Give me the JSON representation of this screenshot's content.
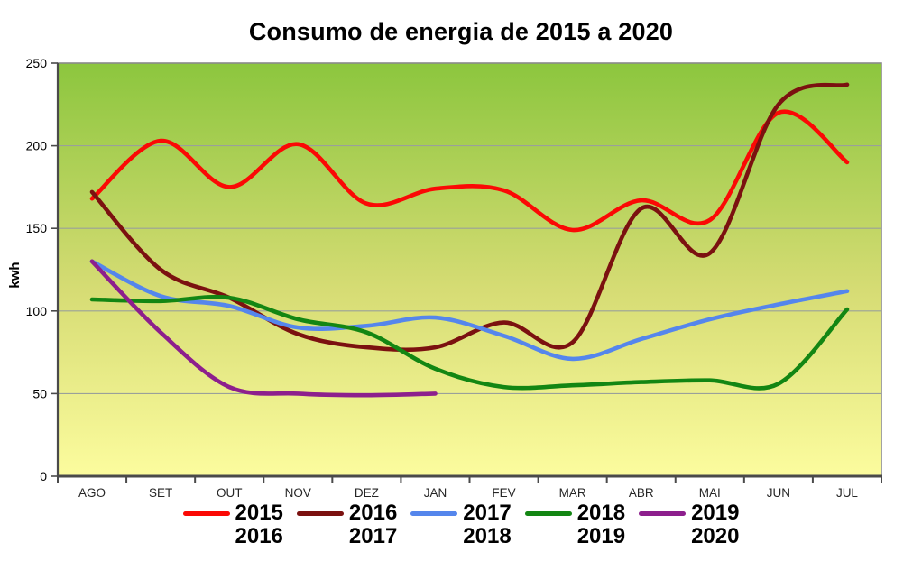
{
  "title": "Consumo de energia de 2015 a 2020",
  "y_axis": {
    "label": "kwh"
  },
  "chart_data": {
    "type": "line",
    "title": "Consumo de energia de 2015 a 2020",
    "xlabel": "",
    "ylabel": "kwh",
    "ylim": [
      0,
      250
    ],
    "yticks": [
      0,
      50,
      100,
      150,
      200,
      250
    ],
    "grid": true,
    "line_style": "smooth",
    "legend_position": "bottom",
    "plot_background": {
      "gradient_top": "#8CC63E",
      "gradient_mid": "#D6DC74",
      "gradient_bottom": "#FCFC9E",
      "border_color": "#8A8A8A",
      "axis_color": "#4A4A4A",
      "gridline_color": "#9AA09A"
    },
    "categories": [
      "AGO",
      "SET",
      "OUT",
      "NOV",
      "DEZ",
      "JAN",
      "FEV",
      "MAR",
      "ABR",
      "MAI",
      "JUN",
      "JUL"
    ],
    "series": [
      {
        "name": "2015 2016",
        "legend_lines": [
          "2015",
          "2016"
        ],
        "color": "#FB0905",
        "values": [
          168,
          203,
          175,
          201,
          165,
          174,
          173,
          149,
          167,
          155,
          220,
          190
        ]
      },
      {
        "name": "2016 2017",
        "legend_lines": [
          "2016",
          "2017"
        ],
        "color": "#7B1110",
        "values": [
          172,
          125,
          108,
          86,
          78,
          78,
          93,
          81,
          162,
          135,
          225,
          237
        ]
      },
      {
        "name": "2017 2018",
        "legend_lines": [
          "2017",
          "2018"
        ],
        "color": "#5586EC",
        "values": [
          130,
          109,
          103,
          90,
          91,
          96,
          85,
          71,
          83,
          95,
          104,
          112
        ]
      },
      {
        "name": "2018 2019",
        "legend_lines": [
          "2018",
          "2019"
        ],
        "color": "#138613",
        "values": [
          107,
          106,
          108,
          95,
          87,
          65,
          54,
          55,
          57,
          58,
          56,
          101
        ]
      },
      {
        "name": "2019 2020",
        "legend_lines": [
          "2019",
          "2020"
        ],
        "color": "#8D1F8D",
        "values": [
          130,
          87,
          54,
          50,
          49,
          50,
          null,
          null,
          null,
          null,
          null,
          null
        ]
      }
    ]
  }
}
